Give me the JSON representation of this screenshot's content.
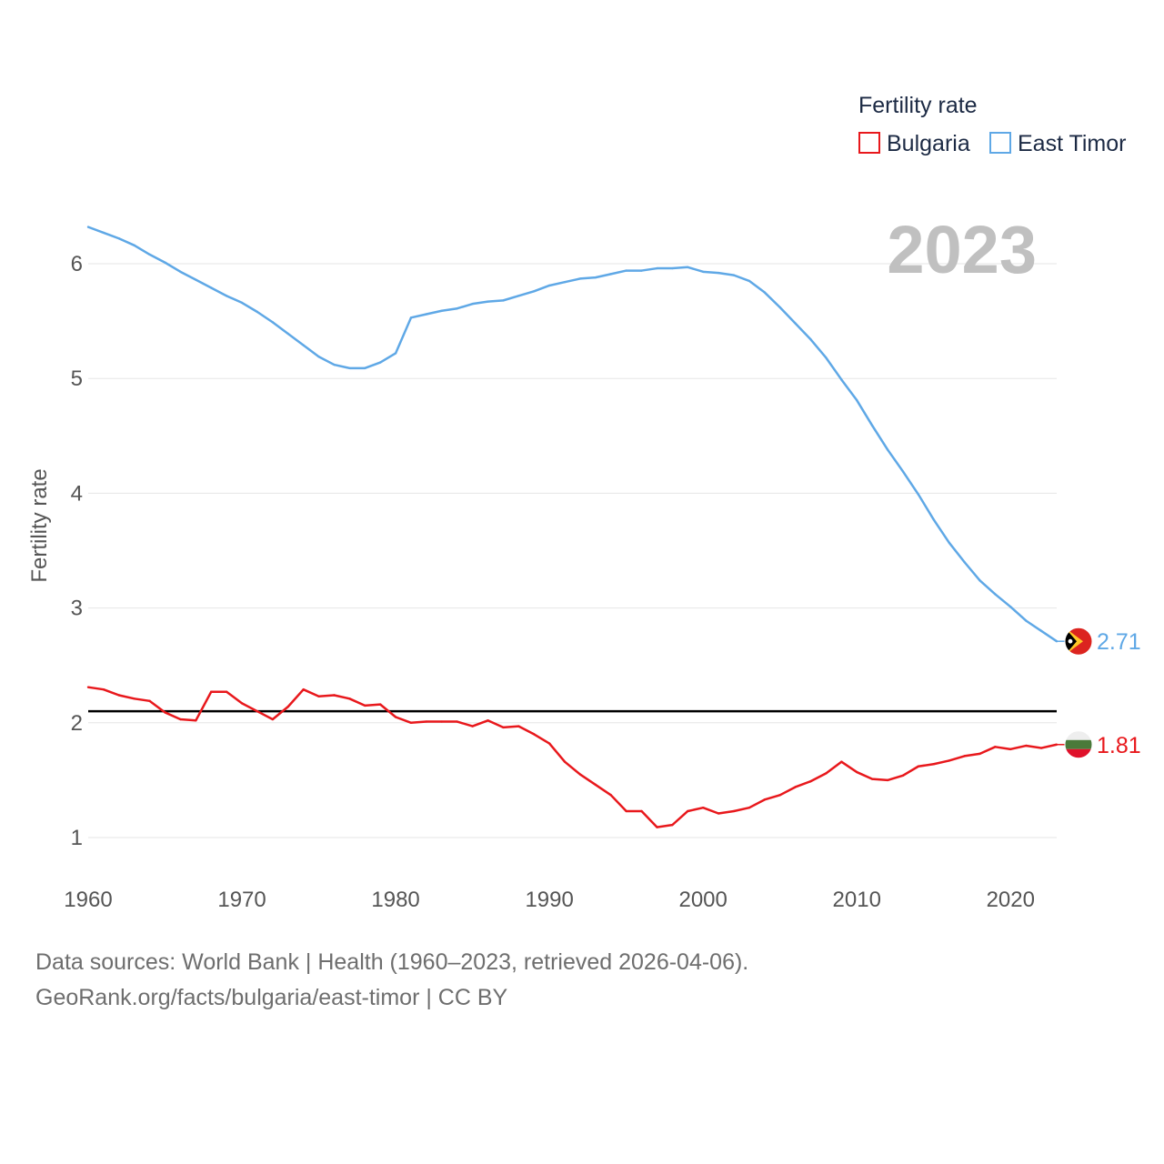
{
  "chart_data": {
    "type": "line",
    "title": "Fertility rate",
    "ylabel": "Fertility rate",
    "xlabel": "",
    "year_label": "2023",
    "xlim": [
      1960,
      2023
    ],
    "ylim": [
      0.5,
      6.5
    ],
    "x_ticks": [
      1960,
      1970,
      1980,
      1990,
      2000,
      2010,
      2020
    ],
    "y_ticks": [
      1,
      2,
      3,
      4,
      5,
      6
    ],
    "grid": true,
    "legend_position": "top-right",
    "reference_line": {
      "value": 2.1
    },
    "x": [
      1960,
      1961,
      1962,
      1963,
      1964,
      1965,
      1966,
      1967,
      1968,
      1969,
      1970,
      1971,
      1972,
      1973,
      1974,
      1975,
      1976,
      1977,
      1978,
      1979,
      1980,
      1981,
      1982,
      1983,
      1984,
      1985,
      1986,
      1987,
      1988,
      1989,
      1990,
      1991,
      1992,
      1993,
      1994,
      1995,
      1996,
      1997,
      1998,
      1999,
      2000,
      2001,
      2002,
      2003,
      2004,
      2005,
      2006,
      2007,
      2008,
      2009,
      2010,
      2011,
      2012,
      2013,
      2014,
      2015,
      2016,
      2017,
      2018,
      2019,
      2020,
      2021,
      2022,
      2023
    ],
    "series": [
      {
        "name": "Bulgaria",
        "color": "#e8181c",
        "end_label": "1.81",
        "values": [
          2.31,
          2.29,
          2.24,
          2.21,
          2.19,
          2.09,
          2.03,
          2.02,
          2.27,
          2.27,
          2.17,
          2.1,
          2.03,
          2.14,
          2.29,
          2.23,
          2.24,
          2.21,
          2.15,
          2.16,
          2.05,
          2.0,
          2.01,
          2.01,
          2.01,
          1.97,
          2.02,
          1.96,
          1.97,
          1.9,
          1.82,
          1.66,
          1.55,
          1.46,
          1.37,
          1.23,
          1.23,
          1.09,
          1.11,
          1.23,
          1.26,
          1.21,
          1.23,
          1.26,
          1.33,
          1.37,
          1.44,
          1.49,
          1.56,
          1.66,
          1.57,
          1.51,
          1.5,
          1.54,
          1.62,
          1.64,
          1.67,
          1.71,
          1.73,
          1.79,
          1.77,
          1.8,
          1.78,
          1.81
        ]
      },
      {
        "name": "East Timor",
        "color": "#5fa8e6",
        "end_label": "2.71",
        "values": [
          6.32,
          6.27,
          6.22,
          6.16,
          6.08,
          6.01,
          5.93,
          5.86,
          5.79,
          5.72,
          5.66,
          5.58,
          5.49,
          5.39,
          5.29,
          5.19,
          5.12,
          5.09,
          5.09,
          5.14,
          5.22,
          5.53,
          5.56,
          5.59,
          5.61,
          5.65,
          5.67,
          5.68,
          5.72,
          5.76,
          5.81,
          5.84,
          5.87,
          5.88,
          5.91,
          5.94,
          5.94,
          5.96,
          5.96,
          5.97,
          5.93,
          5.92,
          5.9,
          5.85,
          5.75,
          5.62,
          5.48,
          5.34,
          5.18,
          4.99,
          4.81,
          4.59,
          4.38,
          4.19,
          3.99,
          3.77,
          3.57,
          3.4,
          3.24,
          3.12,
          3.01,
          2.89,
          2.8,
          2.71
        ]
      }
    ]
  },
  "footer": {
    "line1": "Data sources: World Bank | Health (1960–2023, retrieved 2026-04-06).",
    "line2": "GeoRank.org/facts/bulgaria/east-timor | CC BY"
  }
}
